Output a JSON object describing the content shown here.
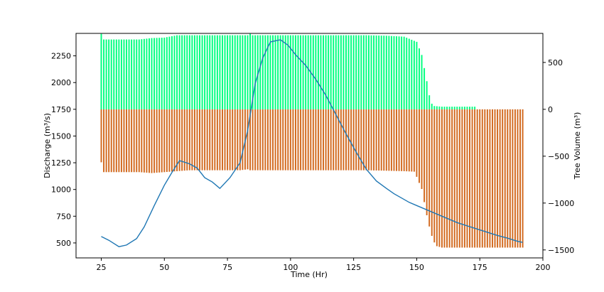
{
  "chart_data": {
    "type": "bar",
    "xlabel": "Time (Hr)",
    "ylabel_left": "Discharge (m³/s)",
    "ylabel_right": "Tree Volume (m³)",
    "xlim": [
      15,
      200
    ],
    "ylim_left": [
      360,
      2460
    ],
    "ylim_right": [
      -1585,
      810
    ],
    "x_ticks": [
      25,
      50,
      75,
      100,
      125,
      150,
      175,
      200
    ],
    "y_ticks_left": [
      500,
      750,
      1000,
      1250,
      1500,
      1750,
      2000,
      2250
    ],
    "y_ticks_right": [
      -1500,
      -1000,
      -500,
      0,
      500
    ],
    "bar_width_hr": 0.55,
    "series": [
      {
        "kind": "bar-positive",
        "axis": "right",
        "color": "#00ff7f",
        "x": [
          25,
          35,
          40,
          45,
          50,
          55,
          60,
          70,
          80,
          83,
          90,
          100,
          110,
          120,
          130,
          138,
          145,
          150,
          152,
          153,
          154,
          155,
          156,
          157,
          160,
          165,
          173,
          174
        ],
        "y": [
          745,
          745,
          745,
          760,
          765,
          790,
          790,
          790,
          790,
          790,
          790,
          790,
          790,
          790,
          790,
          785,
          775,
          720,
          580,
          440,
          300,
          150,
          60,
          35,
          28,
          28,
          28,
          0
        ]
      },
      {
        "kind": "bar-negative",
        "axis": "right",
        "color": "#d2691e",
        "x": [
          25,
          26,
          35,
          40,
          45,
          50,
          55,
          60,
          70,
          80,
          83,
          84,
          90,
          100,
          110,
          120,
          130,
          138,
          145,
          149,
          150,
          152,
          153,
          154,
          155,
          156,
          157,
          158,
          160,
          170,
          180,
          192
        ],
        "y": [
          -565,
          -670,
          -670,
          -670,
          -680,
          -670,
          -660,
          -650,
          -650,
          -650,
          -640,
          -650,
          -650,
          -650,
          -650,
          -650,
          -650,
          -655,
          -660,
          -665,
          -720,
          -850,
          -990,
          -1130,
          -1250,
          -1350,
          -1420,
          -1460,
          -1475,
          -1475,
          -1475,
          -1475
        ]
      },
      {
        "kind": "line",
        "axis": "left",
        "color": "#1f77b4",
        "x": [
          25,
          28,
          32,
          35,
          39,
          42,
          46,
          50,
          53,
          56,
          60,
          63,
          66,
          69,
          72,
          76,
          80,
          83,
          86,
          89,
          92,
          96,
          99,
          102,
          106,
          110,
          114,
          118,
          122,
          126,
          130,
          134,
          138,
          141,
          144,
          147,
          150,
          154,
          158,
          162,
          166,
          170,
          174,
          178,
          182,
          186,
          190,
          192
        ],
        "y": [
          560,
          525,
          465,
          480,
          540,
          650,
          850,
          1040,
          1160,
          1270,
          1240,
          1200,
          1110,
          1070,
          1010,
          1110,
          1250,
          1550,
          1990,
          2230,
          2380,
          2400,
          2350,
          2260,
          2160,
          2030,
          1880,
          1700,
          1520,
          1350,
          1190,
          1080,
          1010,
          960,
          920,
          880,
          850,
          810,
          770,
          730,
          690,
          660,
          630,
          600,
          570,
          545,
          515,
          505
        ]
      }
    ]
  }
}
